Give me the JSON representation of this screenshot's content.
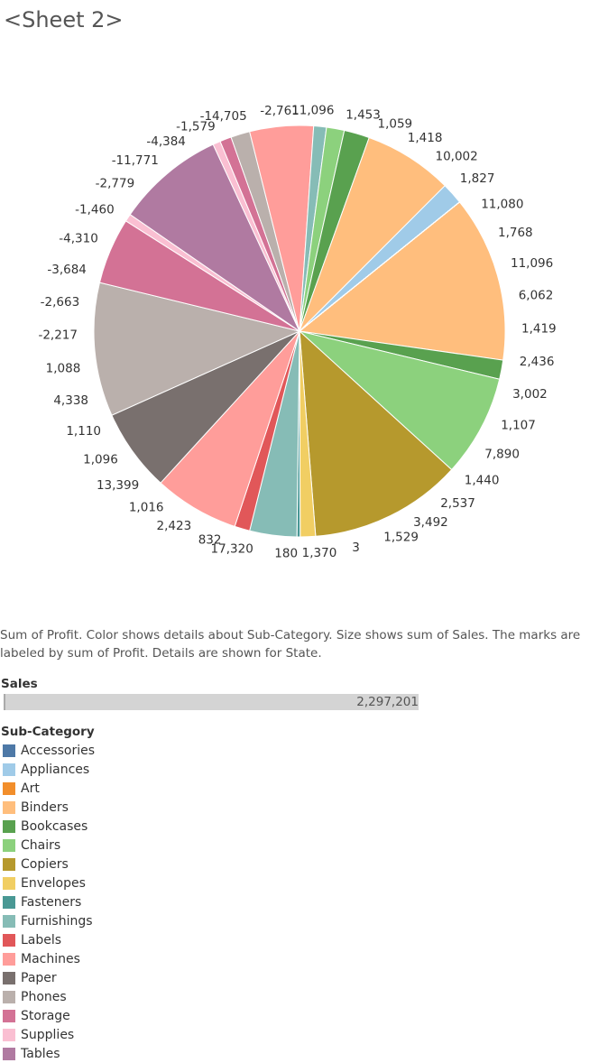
{
  "sheet": {
    "title": "<Sheet 2>"
  },
  "caption": "Sum of Profit.  Color shows details about Sub-Category.  Size shows sum of Sales.  The marks are labeled by sum of Profit.  Details are shown for State.",
  "sales_legend": {
    "title": "Sales",
    "total": "2,297,201"
  },
  "legend": {
    "title": "Sub-Category",
    "items": [
      {
        "label": "Accessories",
        "color": "#4e79a7"
      },
      {
        "label": "Appliances",
        "color": "#a0cbe8"
      },
      {
        "label": "Art",
        "color": "#f28e2b"
      },
      {
        "label": "Binders",
        "color": "#ffbe7d"
      },
      {
        "label": "Bookcases",
        "color": "#59a14f"
      },
      {
        "label": "Chairs",
        "color": "#8cd17d"
      },
      {
        "label": "Copiers",
        "color": "#b6992d"
      },
      {
        "label": "Envelopes",
        "color": "#f1ce63"
      },
      {
        "label": "Fasteners",
        "color": "#499894"
      },
      {
        "label": "Furnishings",
        "color": "#86bcb6"
      },
      {
        "label": "Labels",
        "color": "#e15759"
      },
      {
        "label": "Machines",
        "color": "#ff9d9a"
      },
      {
        "label": "Paper",
        "color": "#79706e"
      },
      {
        "label": "Phones",
        "color": "#bab0ac"
      },
      {
        "label": "Storage",
        "color": "#d37295"
      },
      {
        "label": "Supplies",
        "color": "#fabfd2"
      },
      {
        "label": "Tables",
        "color": "#b07aa1"
      }
    ]
  },
  "chart_data": {
    "type": "pie",
    "value_encoding": "slice size = sum of Sales; label = sum of Profit",
    "slices": [
      {
        "category": "Accessories",
        "share": 0.074,
        "profit_label": "11,096"
      },
      {
        "category": "Appliances",
        "share": 0.054,
        "profit_label": "1,453"
      },
      {
        "category": "Art",
        "share": 0.012,
        "profit_label": "1,059"
      },
      {
        "category": "Binders",
        "share": 0.1325,
        "profit_label": "1,418"
      },
      {
        "category": "Bookcases",
        "share": 0.015,
        "profit_label": "10,002"
      },
      {
        "category": "Chairs",
        "share": 0.08,
        "profit_label": "1,827"
      },
      {
        "category": "Copiers",
        "share": 0.12,
        "profit_label": "11,080"
      },
      {
        "category": "Envelopes",
        "share": 0.012,
        "profit_label": "1,768"
      },
      {
        "category": "Fasteners",
        "share": 0.0025,
        "profit_label": "11,096"
      },
      {
        "category": "Furnishings",
        "share": 0.037,
        "profit_label": "6,062"
      },
      {
        "category": "Labels",
        "share": 0.012,
        "profit_label": "1,419"
      },
      {
        "category": "Machines",
        "share": 0.067,
        "profit_label": "2,436"
      },
      {
        "category": "Paper",
        "share": 0.065,
        "profit_label": "3,002"
      },
      {
        "category": "Phones",
        "share": 0.105,
        "profit_label": "1,107"
      },
      {
        "category": "Storage",
        "share": 0.052,
        "profit_label": "7,890"
      },
      {
        "category": "Supplies",
        "share": 0.006,
        "profit_label": "1,440"
      },
      {
        "category": "Tables",
        "share": 0.085,
        "profit_label": "2,537"
      },
      {
        "category": "Supplies",
        "share": 0.006,
        "profit_label": "3,492"
      },
      {
        "category": "Storage",
        "share": 0.009,
        "profit_label": "1,529"
      },
      {
        "category": "Phones",
        "share": 0.015,
        "profit_label": "3"
      },
      {
        "category": "Machines",
        "share": 0.05,
        "profit_label": "1,370"
      },
      {
        "category": "Furnishings",
        "share": 0.01,
        "profit_label": "180"
      },
      {
        "category": "Chairs",
        "share": 0.014,
        "profit_label": "17,320"
      },
      {
        "category": "Bookcases",
        "share": 0.02,
        "profit_label": "832"
      },
      {
        "category": "Binders",
        "share": 0.07,
        "profit_label": "2,423"
      },
      {
        "category": "Appliances",
        "share": 0.017,
        "profit_label": "1,016"
      }
    ],
    "labels": [
      "11,096",
      "1,453",
      "1,059",
      "1,418",
      "10,002",
      "1,827",
      "11,080",
      "1,768",
      "11,096",
      "6,062",
      "1,419",
      "2,436",
      "3,002",
      "1,107",
      "7,890",
      "1,440",
      "2,537",
      "3,492",
      "1,529",
      "3",
      "1,370",
      "180",
      "17,320",
      "832",
      "2,423",
      "1,016",
      "13,399",
      "1,096",
      "1,110",
      "4,338",
      "1,088",
      "-2,217",
      "-2,663",
      "-3,684",
      "-4,310",
      "-1,460",
      "-2,779",
      "-11,771",
      "-4,384",
      "-1,579",
      "-14,705",
      "-2,761"
    ]
  }
}
